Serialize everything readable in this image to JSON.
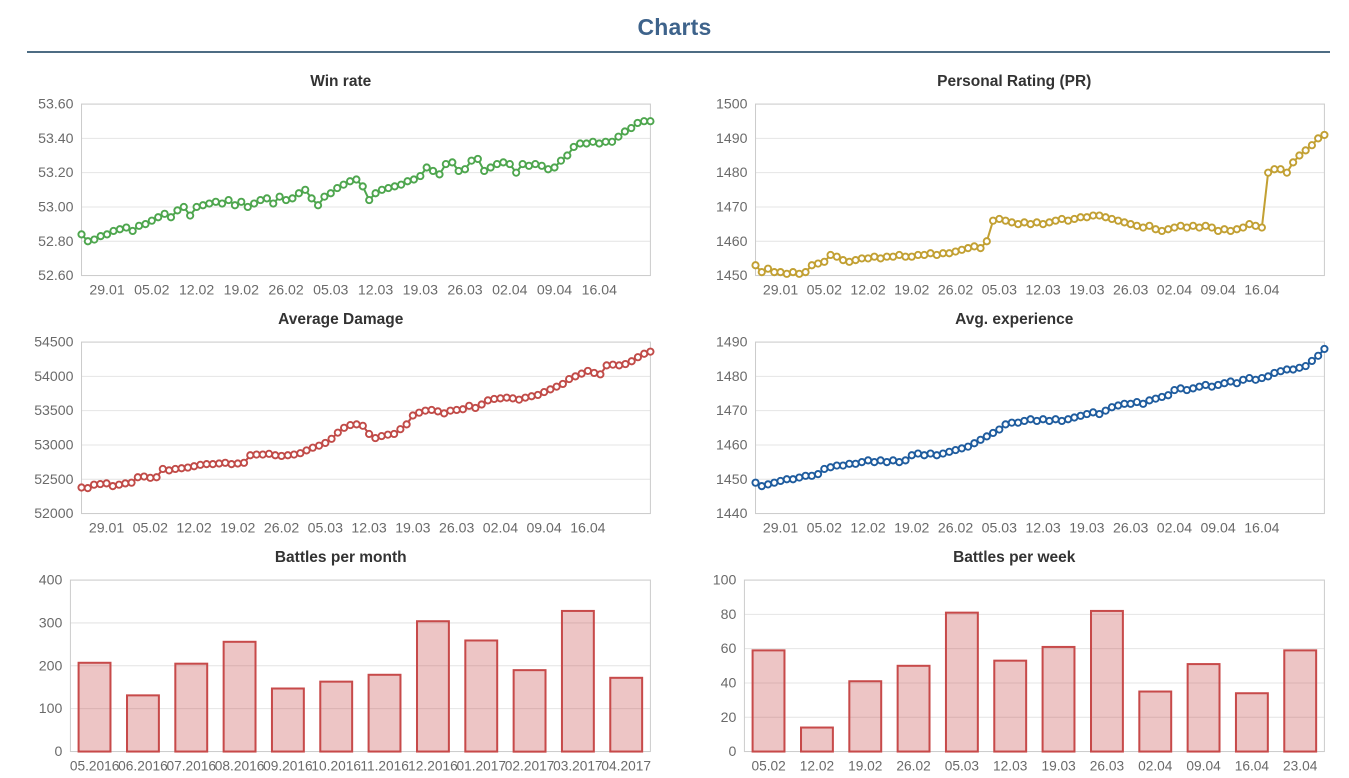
{
  "page": {
    "title": "Charts"
  },
  "colors": {
    "page_title": "#3e638b",
    "divider": "#4d6c83",
    "grid_line": "#e4e4e4",
    "plot_border": "#cccccc",
    "tick_label": "#6a6a6a",
    "chart_title": "#333333",
    "bar_fill": "rgba(199,74,74,0.32)"
  },
  "chart_data": [
    {
      "type": "line",
      "title": "Win rate",
      "color": "#4ea64e",
      "ylim": [
        52.6,
        53.6
      ],
      "y_ticks": [
        52.6,
        52.8,
        53.0,
        53.2,
        53.4,
        53.6
      ],
      "y_tick_labels": [
        "52.60",
        "52.80",
        "53.00",
        "53.20",
        "53.40",
        "53.60"
      ],
      "x_tick_labels": [
        "29.01",
        "05.02",
        "12.02",
        "19.02",
        "26.02",
        "05.03",
        "12.03",
        "19.03",
        "26.03",
        "02.04",
        "09.04",
        "16.04"
      ],
      "x_tick_indices": [
        4,
        11,
        18,
        25,
        32,
        39,
        46,
        53,
        60,
        67,
        74,
        81
      ],
      "values": [
        52.84,
        52.8,
        52.81,
        52.83,
        52.84,
        52.86,
        52.87,
        52.88,
        52.86,
        52.89,
        52.9,
        52.92,
        52.94,
        52.96,
        52.94,
        52.98,
        53.0,
        52.95,
        53.0,
        53.01,
        53.02,
        53.03,
        53.02,
        53.04,
        53.01,
        53.03,
        53.0,
        53.02,
        53.04,
        53.05,
        53.02,
        53.06,
        53.04,
        53.05,
        53.08,
        53.1,
        53.05,
        53.01,
        53.06,
        53.08,
        53.11,
        53.13,
        53.15,
        53.16,
        53.12,
        53.04,
        53.08,
        53.1,
        53.11,
        53.12,
        53.13,
        53.15,
        53.16,
        53.18,
        53.23,
        53.21,
        53.19,
        53.25,
        53.26,
        53.21,
        53.22,
        53.27,
        53.28,
        53.21,
        53.23,
        53.25,
        53.26,
        53.25,
        53.2,
        53.25,
        53.24,
        53.25,
        53.24,
        53.22,
        53.23,
        53.27,
        53.3,
        53.35,
        53.37,
        53.37,
        53.38,
        53.37,
        53.38,
        53.38,
        53.41,
        53.44,
        53.46,
        53.49,
        53.5,
        53.5
      ]
    },
    {
      "type": "line",
      "title": "Personal Rating (PR)",
      "color": "#c2a033",
      "ylim": [
        1450,
        1500
      ],
      "y_ticks": [
        1450,
        1460,
        1470,
        1480,
        1490,
        1500
      ],
      "y_tick_labels": [
        "1450",
        "1460",
        "1470",
        "1480",
        "1490",
        "1500"
      ],
      "x_tick_labels": [
        "29.01",
        "05.02",
        "12.02",
        "19.02",
        "26.02",
        "05.03",
        "12.03",
        "19.03",
        "26.03",
        "02.04",
        "09.04",
        "16.04"
      ],
      "x_tick_indices": [
        4,
        11,
        18,
        25,
        32,
        39,
        46,
        53,
        60,
        67,
        74,
        81
      ],
      "values": [
        1453,
        1451,
        1452,
        1451,
        1451,
        1450.5,
        1451,
        1450.5,
        1451,
        1453,
        1453.5,
        1454,
        1456,
        1455.5,
        1454.5,
        1454,
        1454.5,
        1455,
        1455,
        1455.5,
        1455,
        1455.5,
        1455.5,
        1456,
        1455.5,
        1455.5,
        1456,
        1456,
        1456.5,
        1456,
        1456.5,
        1456.5,
        1457,
        1457.5,
        1458,
        1458.5,
        1458,
        1460,
        1466,
        1466.5,
        1466,
        1465.5,
        1465,
        1465.5,
        1465,
        1465.5,
        1465,
        1465.5,
        1466,
        1466.5,
        1466,
        1466.5,
        1467,
        1467,
        1467.5,
        1467.5,
        1467,
        1466.5,
        1466,
        1465.5,
        1465,
        1464.5,
        1464,
        1464.5,
        1463.5,
        1463,
        1463.5,
        1464,
        1464.5,
        1464,
        1464.5,
        1464,
        1464.5,
        1464,
        1463,
        1463.5,
        1463,
        1463.5,
        1464,
        1465,
        1464.5,
        1464,
        1480,
        1481,
        1481,
        1480,
        1483,
        1485,
        1486.5,
        1488,
        1490,
        1491
      ]
    },
    {
      "type": "line",
      "title": "Average Damage",
      "color": "#c14b48",
      "ylim": [
        52000,
        54500
      ],
      "y_ticks": [
        52000,
        52500,
        53000,
        53500,
        54000,
        54500
      ],
      "y_tick_labels": [
        "52000",
        "52500",
        "53000",
        "53500",
        "54000",
        "54500"
      ],
      "x_tick_labels": [
        "29.01",
        "05.02",
        "12.02",
        "19.02",
        "26.02",
        "05.03",
        "12.03",
        "19.03",
        "26.03",
        "02.04",
        "09.04",
        "16.04"
      ],
      "x_tick_indices": [
        4,
        11,
        18,
        25,
        32,
        39,
        46,
        53,
        60,
        67,
        74,
        81
      ],
      "values": [
        52380,
        52370,
        52420,
        52430,
        52440,
        52400,
        52420,
        52440,
        52450,
        52530,
        52540,
        52520,
        52530,
        52650,
        52630,
        52650,
        52660,
        52670,
        52690,
        52710,
        52720,
        52720,
        52730,
        52740,
        52720,
        52730,
        52740,
        52850,
        52860,
        52860,
        52870,
        52850,
        52840,
        52850,
        52860,
        52880,
        52920,
        52960,
        52990,
        53030,
        53090,
        53180,
        53250,
        53290,
        53300,
        53280,
        53160,
        53100,
        53130,
        53150,
        53160,
        53230,
        53300,
        53430,
        53470,
        53500,
        53510,
        53490,
        53460,
        53500,
        53510,
        53520,
        53570,
        53540,
        53590,
        53650,
        53670,
        53680,
        53690,
        53680,
        53660,
        53690,
        53710,
        53730,
        53770,
        53810,
        53850,
        53890,
        53960,
        54000,
        54040,
        54080,
        54050,
        54030,
        54160,
        54170,
        54160,
        54180,
        54220,
        54280,
        54330,
        54360
      ]
    },
    {
      "type": "line",
      "title": "Avg. experience",
      "color": "#1f5c9e",
      "ylim": [
        1440,
        1490
      ],
      "y_ticks": [
        1440,
        1450,
        1460,
        1470,
        1480,
        1490
      ],
      "y_tick_labels": [
        "1440",
        "1450",
        "1460",
        "1470",
        "1480",
        "1490"
      ],
      "x_tick_labels": [
        "29.01",
        "05.02",
        "12.02",
        "19.02",
        "26.02",
        "05.03",
        "12.03",
        "19.03",
        "26.03",
        "02.04",
        "09.04",
        "16.04"
      ],
      "x_tick_indices": [
        4,
        11,
        18,
        25,
        32,
        39,
        46,
        53,
        60,
        67,
        74,
        81
      ],
      "values": [
        1449,
        1448,
        1448.5,
        1449,
        1449.5,
        1450,
        1450,
        1450.5,
        1451,
        1451,
        1451.5,
        1453,
        1453.5,
        1454,
        1454,
        1454.5,
        1454.5,
        1455,
        1455.5,
        1455,
        1455.5,
        1455,
        1455.5,
        1455,
        1455.5,
        1457,
        1457.5,
        1457,
        1457.5,
        1457,
        1457.5,
        1458,
        1458.5,
        1459,
        1459.5,
        1460.5,
        1461.5,
        1462.5,
        1463.5,
        1464.5,
        1466,
        1466.5,
        1466.5,
        1467,
        1467.5,
        1467,
        1467.5,
        1467,
        1467.5,
        1467,
        1467.5,
        1468,
        1468.5,
        1469,
        1469.5,
        1469,
        1470,
        1471,
        1471.5,
        1472,
        1472,
        1472.5,
        1472,
        1473,
        1473.5,
        1474,
        1474.5,
        1476,
        1476.5,
        1476,
        1476.5,
        1477,
        1477.5,
        1477,
        1477.5,
        1478,
        1478.5,
        1478,
        1479,
        1479.5,
        1479,
        1479.5,
        1480,
        1481,
        1481.5,
        1482,
        1482,
        1482.5,
        1483,
        1484.5,
        1486,
        1488
      ]
    },
    {
      "type": "bar",
      "title": "Battles per month",
      "color": "#c74a4a",
      "ylim": [
        0,
        400
      ],
      "y_ticks": [
        0,
        100,
        200,
        300,
        400
      ],
      "y_tick_labels": [
        "0",
        "100",
        "200",
        "300",
        "400"
      ],
      "categories": [
        "05.2016",
        "06.2016",
        "07.2016",
        "08.2016",
        "09.2016",
        "10.2016",
        "11.2016",
        "12.2016",
        "01.2017",
        "02.2017",
        "03.2017",
        "04.2017"
      ],
      "values": [
        207,
        131,
        205,
        256,
        147,
        163,
        179,
        304,
        259,
        190,
        328,
        172
      ]
    },
    {
      "type": "bar",
      "title": "Battles per week",
      "color": "#c74a4a",
      "ylim": [
        0,
        100
      ],
      "y_ticks": [
        0,
        20,
        40,
        60,
        80,
        100
      ],
      "y_tick_labels": [
        "0",
        "20",
        "40",
        "60",
        "80",
        "100"
      ],
      "categories": [
        "05.02",
        "12.02",
        "19.02",
        "26.02",
        "05.03",
        "12.03",
        "19.03",
        "26.03",
        "02.04",
        "09.04",
        "16.04",
        "23.04"
      ],
      "values": [
        59,
        14,
        41,
        50,
        81,
        53,
        61,
        82,
        35,
        51,
        34,
        59
      ]
    }
  ]
}
